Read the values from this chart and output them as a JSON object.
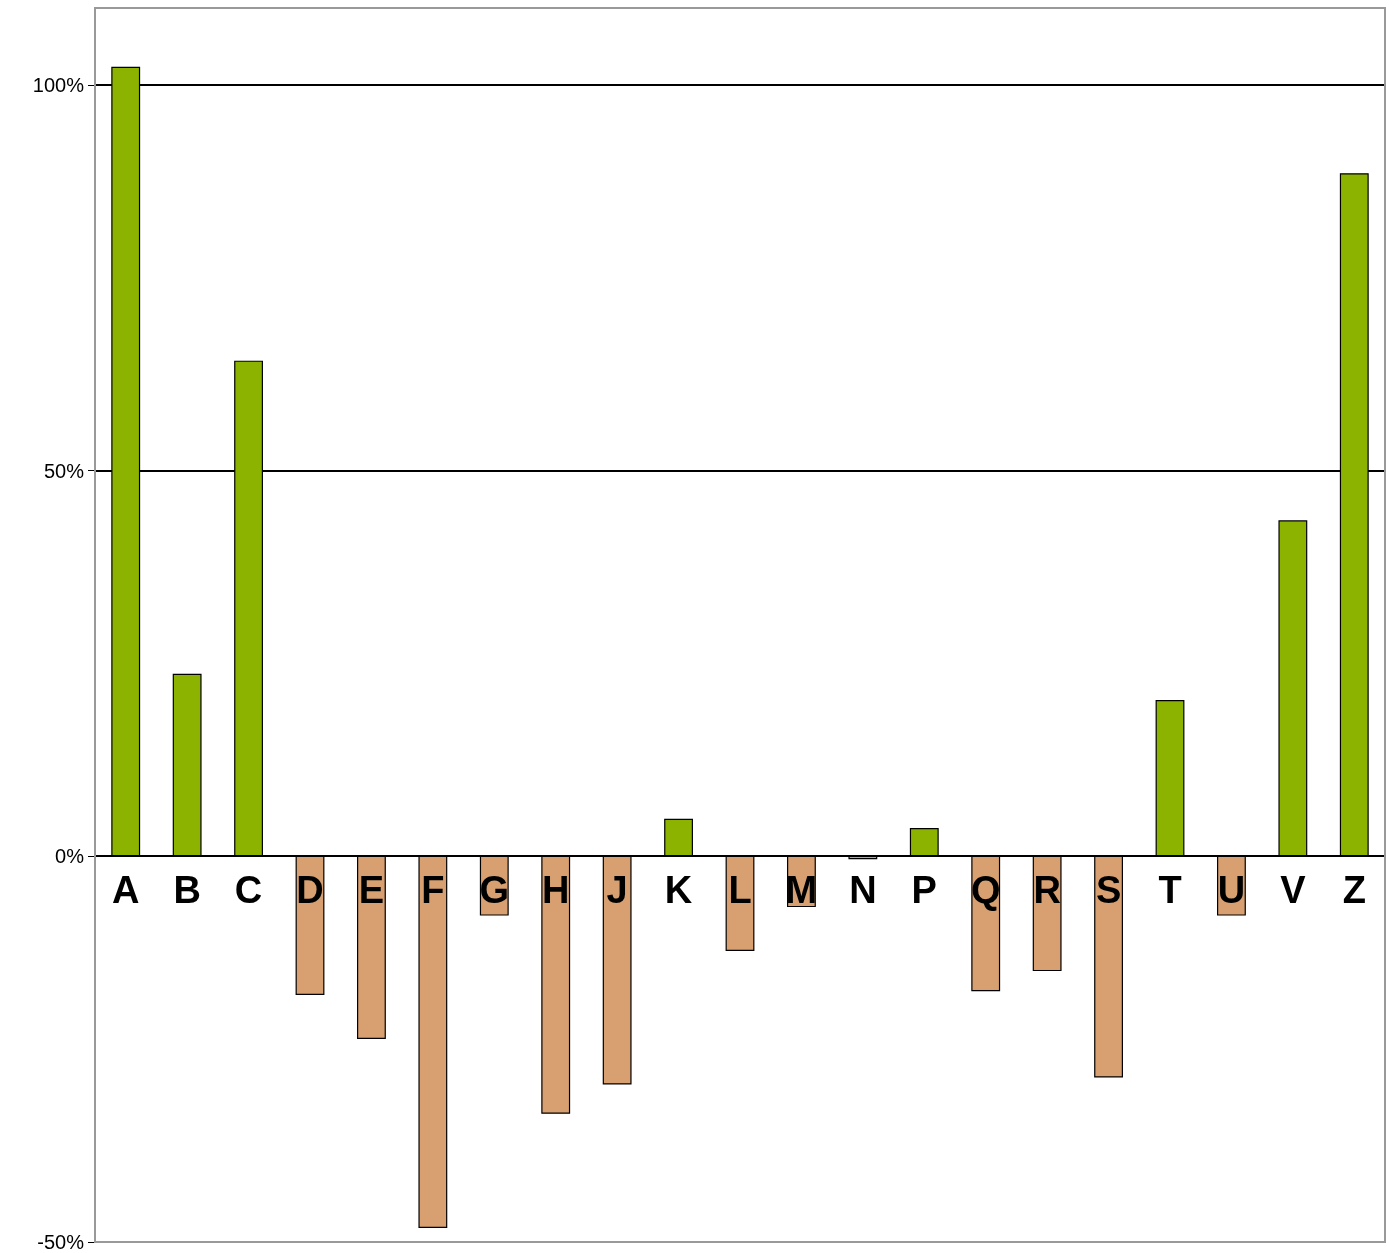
{
  "chart_data": {
    "type": "bar",
    "categories": [
      "A",
      "B",
      "C",
      "D",
      "E",
      "F",
      "G",
      "H",
      "J",
      "K",
      "L",
      "M",
      "N",
      "P",
      "Q",
      "R",
      "S",
      "T",
      "U",
      "V",
      "Z"
    ],
    "values": [
      102.3,
      23.6,
      64.2,
      -17.9,
      -23.6,
      -48.1,
      -7.6,
      -33.3,
      -29.5,
      4.8,
      -12.2,
      -6.5,
      -0.3,
      3.6,
      -17.4,
      -14.8,
      -28.6,
      20.2,
      -7.6,
      43.5,
      88.5
    ],
    "colors": [
      "#8cb300",
      "#8cb300",
      "#8cb300",
      "#d8a070",
      "#d8a070",
      "#d8a070",
      "#d8a070",
      "#d8a070",
      "#d8a070",
      "#8cb300",
      "#d8a070",
      "#d8a070",
      "#d8a070",
      "#8cb300",
      "#d8a070",
      "#d8a070",
      "#d8a070",
      "#8cb300",
      "#d8a070",
      "#8cb300",
      "#8cb300"
    ],
    "ylim": [
      -50,
      110
    ],
    "yticks": [
      {
        "value": -50,
        "label": "-50%"
      },
      {
        "value": 0,
        "label": "0%"
      },
      {
        "value": 50,
        "label": "50%"
      },
      {
        "value": 100,
        "label": "100%"
      }
    ],
    "grid": "y",
    "legend": false
  }
}
